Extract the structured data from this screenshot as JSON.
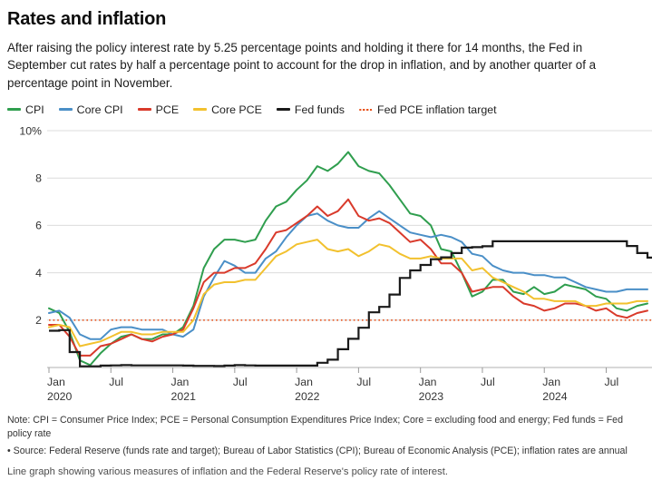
{
  "header": {
    "title": "Rates and inflation",
    "description": "After raising the policy interest rate by 5.25 percentage points and holding it there for 14 months, the Fed in September cut rates by half a percentage point to account for the drop in inflation, and by another quarter of a percentage point in November."
  },
  "legend": {
    "items": [
      {
        "label": "CPI",
        "color": "#2f9e4e",
        "style": "solid"
      },
      {
        "label": "Core CPI",
        "color": "#4a8fc7",
        "style": "solid"
      },
      {
        "label": "PCE",
        "color": "#d93a2b",
        "style": "solid"
      },
      {
        "label": "Core PCE",
        "color": "#f2c12e",
        "style": "solid"
      },
      {
        "label": "Fed funds",
        "color": "#1a1a1a",
        "style": "solid"
      },
      {
        "label": "Fed PCE inflation target",
        "color": "#e8541e",
        "style": "dotted"
      }
    ]
  },
  "chart_data": {
    "type": "line",
    "unit": "%",
    "frequency": "monthly",
    "x_start": "Jan 2020",
    "x_end": "Nov 2024",
    "ylim": [
      0,
      10
    ],
    "grid": true,
    "legend_position": "top",
    "y_ticks": [
      {
        "value": 10,
        "label": "10%"
      },
      {
        "value": 8,
        "label": "8"
      },
      {
        "value": 6,
        "label": "6"
      },
      {
        "value": 4,
        "label": "4"
      },
      {
        "value": 2,
        "label": "2"
      }
    ],
    "x_ticks": [
      {
        "month_index": 0,
        "label": "Jan",
        "year": "2020"
      },
      {
        "month_index": 6,
        "label": "Jul",
        "year": ""
      },
      {
        "month_index": 12,
        "label": "Jan",
        "year": "2021"
      },
      {
        "month_index": 18,
        "label": "Jul",
        "year": ""
      },
      {
        "month_index": 24,
        "label": "Jan",
        "year": "2022"
      },
      {
        "month_index": 30,
        "label": "Jul",
        "year": ""
      },
      {
        "month_index": 36,
        "label": "Jan",
        "year": "2023"
      },
      {
        "month_index": 42,
        "label": "Jul",
        "year": ""
      },
      {
        "month_index": 48,
        "label": "Jan",
        "year": "2024"
      },
      {
        "month_index": 54,
        "label": "Jul",
        "year": ""
      }
    ],
    "target_line": {
      "name": "Fed PCE inflation target",
      "value": 2,
      "color": "#e8541e",
      "style": "dotted"
    },
    "series": [
      {
        "name": "CPI",
        "color": "#2f9e4e",
        "render": "line",
        "values": [
          2.5,
          2.3,
          1.5,
          0.3,
          0.1,
          0.6,
          1.0,
          1.3,
          1.4,
          1.2,
          1.2,
          1.4,
          1.4,
          1.7,
          2.6,
          4.2,
          5.0,
          5.4,
          5.4,
          5.3,
          5.4,
          6.2,
          6.8,
          7.0,
          7.5,
          7.9,
          8.5,
          8.3,
          8.6,
          9.1,
          8.5,
          8.3,
          8.2,
          7.7,
          7.1,
          6.5,
          6.4,
          6.0,
          5.0,
          4.9,
          4.0,
          3.0,
          3.2,
          3.7,
          3.7,
          3.2,
          3.1,
          3.4,
          3.1,
          3.2,
          3.5,
          3.4,
          3.3,
          3.0,
          2.9,
          2.5,
          2.4,
          2.6,
          2.7
        ]
      },
      {
        "name": "Core CPI",
        "color": "#4a8fc7",
        "render": "line",
        "values": [
          2.3,
          2.4,
          2.1,
          1.4,
          1.2,
          1.2,
          1.6,
          1.7,
          1.7,
          1.6,
          1.6,
          1.6,
          1.4,
          1.3,
          1.6,
          3.0,
          3.8,
          4.5,
          4.3,
          4.0,
          4.0,
          4.6,
          4.9,
          5.5,
          6.0,
          6.4,
          6.5,
          6.2,
          6.0,
          5.9,
          5.9,
          6.3,
          6.6,
          6.3,
          6.0,
          5.7,
          5.6,
          5.5,
          5.6,
          5.5,
          5.3,
          4.8,
          4.7,
          4.3,
          4.1,
          4.0,
          4.0,
          3.9,
          3.9,
          3.8,
          3.8,
          3.6,
          3.4,
          3.3,
          3.2,
          3.2,
          3.3,
          3.3,
          3.3
        ]
      },
      {
        "name": "PCE",
        "color": "#d93a2b",
        "render": "line",
        "values": [
          1.8,
          1.8,
          1.3,
          0.5,
          0.5,
          0.9,
          1.0,
          1.2,
          1.4,
          1.2,
          1.1,
          1.3,
          1.4,
          1.6,
          2.5,
          3.6,
          4.0,
          4.0,
          4.2,
          4.2,
          4.4,
          5.0,
          5.7,
          5.8,
          6.1,
          6.4,
          6.8,
          6.4,
          6.6,
          7.1,
          6.4,
          6.2,
          6.3,
          6.1,
          5.7,
          5.3,
          5.4,
          5.0,
          4.4,
          4.4,
          4.0,
          3.2,
          3.3,
          3.4,
          3.4,
          3.0,
          2.7,
          2.6,
          2.4,
          2.5,
          2.7,
          2.7,
          2.6,
          2.4,
          2.5,
          2.2,
          2.1,
          2.3,
          2.4
        ]
      },
      {
        "name": "Core PCE",
        "color": "#f2c12e",
        "render": "line",
        "values": [
          1.7,
          1.8,
          1.7,
          0.9,
          1.0,
          1.1,
          1.3,
          1.5,
          1.5,
          1.4,
          1.4,
          1.5,
          1.5,
          1.5,
          2.0,
          3.1,
          3.5,
          3.6,
          3.6,
          3.7,
          3.7,
          4.2,
          4.7,
          4.9,
          5.2,
          5.3,
          5.4,
          5.0,
          4.9,
          5.0,
          4.7,
          4.9,
          5.2,
          5.1,
          4.8,
          4.6,
          4.6,
          4.7,
          4.6,
          4.6,
          4.6,
          4.1,
          4.2,
          3.8,
          3.6,
          3.4,
          3.2,
          2.9,
          2.9,
          2.8,
          2.8,
          2.8,
          2.6,
          2.6,
          2.7,
          2.7,
          2.7,
          2.8,
          2.8
        ]
      },
      {
        "name": "Fed funds",
        "color": "#1a1a1a",
        "render": "step",
        "values": [
          1.55,
          1.58,
          0.65,
          0.05,
          0.05,
          0.08,
          0.09,
          0.1,
          0.09,
          0.09,
          0.09,
          0.09,
          0.09,
          0.08,
          0.07,
          0.07,
          0.06,
          0.08,
          0.1,
          0.09,
          0.08,
          0.08,
          0.08,
          0.08,
          0.08,
          0.08,
          0.2,
          0.33,
          0.77,
          1.21,
          1.68,
          2.33,
          2.56,
          3.08,
          3.78,
          4.1,
          4.33,
          4.57,
          4.65,
          4.83,
          5.06,
          5.08,
          5.12,
          5.33,
          5.33,
          5.33,
          5.33,
          5.33,
          5.33,
          5.33,
          5.33,
          5.33,
          5.33,
          5.33,
          5.33,
          5.33,
          5.13,
          4.83,
          4.64
        ]
      }
    ]
  },
  "footer": {
    "note": "Note: CPI = Consumer Price Index; PCE = Personal Consumption Expenditures Price Index; Core = excluding food and energy; Fed funds = Fed policy rate",
    "source": "• Source: Federal Reserve (funds rate and target); Bureau of Labor Statistics (CPI); Bureau of Economic Analysis (PCE); inflation rates are annual",
    "alt_text": "Line graph showing various measures of inflation and the Federal Reserve's policy rate of interest."
  }
}
